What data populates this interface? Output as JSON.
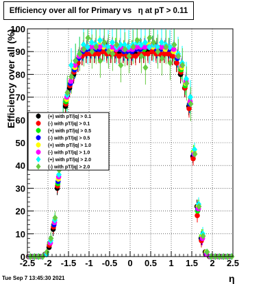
{
  "title": "Efficiency over all for Primary vs   η at pT > 0.11",
  "footer": "Tue Sep  7 13:45:30 2021",
  "chart_data": {
    "type": "scatter",
    "title": "Efficiency over all for Primary vs   η at pT > 0.11",
    "xlabel": "η",
    "ylabel": "Efficiency over all (%)",
    "xlim": [
      -2.5,
      2.5
    ],
    "ylim": [
      0,
      100
    ],
    "x_ticks": [
      "-2.5",
      "-2",
      "-1.5",
      "-1",
      "-0.5",
      "0",
      "0.5",
      "1",
      "1.5",
      "2",
      "2.5"
    ],
    "y_ticks": [
      "0",
      "10",
      "20",
      "30",
      "40",
      "50",
      "60",
      "70",
      "80",
      "90",
      "100"
    ],
    "grid": true,
    "legend_position": "left",
    "series": [
      {
        "name": "(+) with pT/|q| > 0.1",
        "color": "#000000",
        "marker": "circle",
        "x": [
          -2.45,
          -2.35,
          -2.25,
          -2.15,
          -2.05,
          -1.95,
          -1.85,
          -1.75,
          -1.65,
          -1.55,
          -1.45,
          -1.35,
          -1.25,
          -1.15,
          -1.05,
          -0.95,
          -0.85,
          -0.75,
          -0.65,
          -0.55,
          -0.45,
          -0.35,
          -0.25,
          -0.15,
          -0.05,
          0.05,
          0.15,
          0.25,
          0.35,
          0.45,
          0.55,
          0.65,
          0.75,
          0.85,
          0.95,
          1.05,
          1.15,
          1.25,
          1.35,
          1.45,
          1.55,
          1.65,
          1.75,
          1.85,
          1.95,
          2.05,
          2.15,
          2.25,
          2.35,
          2.45
        ],
        "y": [
          0,
          0,
          0,
          0,
          1,
          4,
          12,
          30,
          55,
          66,
          74,
          80,
          85,
          88,
          89,
          89,
          89,
          90,
          90,
          90,
          89,
          89,
          89,
          89,
          88,
          88,
          89,
          89,
          89,
          90,
          90,
          90,
          89,
          89,
          89,
          88,
          85,
          80,
          74,
          66,
          44,
          22,
          8,
          2,
          0,
          0,
          0,
          0,
          0,
          0
        ]
      },
      {
        "name": "(-) with pT/|q| > 0.1",
        "color": "#ff0000",
        "marker": "circle",
        "x": [
          -2.45,
          -2.35,
          -2.25,
          -2.15,
          -2.05,
          -1.95,
          -1.85,
          -1.75,
          -1.65,
          -1.55,
          -1.45,
          -1.35,
          -1.25,
          -1.15,
          -1.05,
          -0.95,
          -0.85,
          -0.75,
          -0.65,
          -0.55,
          -0.45,
          -0.35,
          -0.25,
          -0.15,
          -0.05,
          0.05,
          0.15,
          0.25,
          0.35,
          0.45,
          0.55,
          0.65,
          0.75,
          0.85,
          0.95,
          1.05,
          1.15,
          1.25,
          1.35,
          1.45,
          1.55,
          1.65,
          1.75,
          1.85,
          1.95,
          2.05,
          2.15,
          2.25,
          2.35,
          2.45
        ],
        "y": [
          0,
          0,
          0,
          0,
          1,
          5,
          13,
          31,
          56,
          67,
          75,
          81,
          85,
          88,
          89,
          89,
          89,
          89,
          90,
          89,
          89,
          89,
          88,
          89,
          88,
          88,
          88,
          89,
          89,
          89,
          90,
          89,
          89,
          89,
          89,
          88,
          85,
          81,
          74,
          65,
          43,
          18,
          7,
          1,
          0,
          0,
          0,
          0,
          0,
          0
        ]
      },
      {
        "name": "(+) with pT/|q| > 0.5",
        "color": "#00ee00",
        "marker": "circle",
        "x": [
          -2.45,
          -2.35,
          -2.25,
          -2.15,
          -2.05,
          -1.95,
          -1.85,
          -1.75,
          -1.65,
          -1.55,
          -1.45,
          -1.35,
          -1.25,
          -1.15,
          -1.05,
          -0.95,
          -0.85,
          -0.75,
          -0.65,
          -0.55,
          -0.45,
          -0.35,
          -0.25,
          -0.15,
          -0.05,
          0.05,
          0.15,
          0.25,
          0.35,
          0.45,
          0.55,
          0.65,
          0.75,
          0.85,
          0.95,
          1.05,
          1.15,
          1.25,
          1.35,
          1.45,
          1.55,
          1.65,
          1.75,
          1.85,
          1.95,
          2.05,
          2.15,
          2.25,
          2.35,
          2.45
        ],
        "y": [
          0,
          0,
          0,
          0,
          1,
          6,
          14,
          32,
          58,
          68,
          76,
          82,
          87,
          90,
          91,
          92,
          91,
          92,
          92,
          91,
          91,
          92,
          91,
          91,
          90,
          91,
          92,
          92,
          91,
          92,
          93,
          92,
          91,
          91,
          92,
          90,
          87,
          82,
          75,
          67,
          46,
          20,
          9,
          1,
          0,
          0,
          0,
          0,
          0,
          0
        ]
      },
      {
        "name": "(-) with pT/|q| > 0.5",
        "color": "#0000ff",
        "marker": "circle",
        "x": [
          -2.45,
          -2.35,
          -2.25,
          -2.15,
          -2.05,
          -1.95,
          -1.85,
          -1.75,
          -1.65,
          -1.55,
          -1.45,
          -1.35,
          -1.25,
          -1.15,
          -1.05,
          -0.95,
          -0.85,
          -0.75,
          -0.65,
          -0.55,
          -0.45,
          -0.35,
          -0.25,
          -0.15,
          -0.05,
          0.05,
          0.15,
          0.25,
          0.35,
          0.45,
          0.55,
          0.65,
          0.75,
          0.85,
          0.95,
          1.05,
          1.15,
          1.25,
          1.35,
          1.45,
          1.55,
          1.65,
          1.75,
          1.85,
          1.95,
          2.05,
          2.15,
          2.25,
          2.35,
          2.45
        ],
        "y": [
          0,
          0,
          0,
          0,
          1,
          6,
          14,
          33,
          58,
          69,
          76,
          82,
          87,
          90,
          91,
          91,
          91,
          91,
          92,
          91,
          91,
          91,
          91,
          90,
          90,
          90,
          91,
          91,
          92,
          92,
          92,
          91,
          91,
          91,
          91,
          90,
          87,
          83,
          76,
          67,
          45,
          21,
          8,
          1,
          0,
          0,
          0,
          0,
          0,
          0
        ]
      },
      {
        "name": "(+) with pT/|q| > 1.0",
        "color": "#ffff00",
        "marker": "circle",
        "x": [
          -2.45,
          -2.35,
          -2.25,
          -2.15,
          -2.05,
          -1.95,
          -1.85,
          -1.75,
          -1.65,
          -1.55,
          -1.45,
          -1.35,
          -1.25,
          -1.15,
          -1.05,
          -0.95,
          -0.85,
          -0.75,
          -0.65,
          -0.55,
          -0.45,
          -0.35,
          -0.25,
          -0.15,
          -0.05,
          0.05,
          0.15,
          0.25,
          0.35,
          0.45,
          0.55,
          0.65,
          0.75,
          0.85,
          0.95,
          1.05,
          1.15,
          1.25,
          1.35,
          1.45,
          1.55,
          1.65,
          1.75,
          1.85,
          1.95,
          2.05,
          2.15,
          2.25,
          2.35,
          2.45
        ],
        "y": [
          0,
          0,
          0,
          0,
          1,
          6,
          15,
          34,
          59,
          69,
          77,
          83,
          88,
          91,
          92,
          92,
          92,
          93,
          92,
          92,
          91,
          92,
          92,
          91,
          91,
          91,
          92,
          92,
          93,
          93,
          92,
          92,
          92,
          91,
          92,
          90,
          88,
          83,
          76,
          68,
          46,
          22,
          9,
          2,
          0,
          0,
          0,
          0,
          0,
          0
        ]
      },
      {
        "name": "(-) with pT/|q| > 1.0",
        "color": "#ff00ff",
        "marker": "circle",
        "x": [
          -2.45,
          -2.35,
          -2.25,
          -2.15,
          -2.05,
          -1.95,
          -1.85,
          -1.75,
          -1.65,
          -1.55,
          -1.45,
          -1.35,
          -1.25,
          -1.15,
          -1.05,
          -0.95,
          -0.85,
          -0.75,
          -0.65,
          -0.55,
          -0.45,
          -0.35,
          -0.25,
          -0.15,
          -0.05,
          0.05,
          0.15,
          0.25,
          0.35,
          0.45,
          0.55,
          0.65,
          0.75,
          0.85,
          0.95,
          1.05,
          1.15,
          1.25,
          1.35,
          1.45,
          1.55,
          1.65,
          1.75,
          1.85,
          1.95,
          2.05,
          2.15,
          2.25,
          2.35,
          2.45
        ],
        "y": [
          0,
          0,
          0,
          0,
          1,
          6,
          15,
          35,
          60,
          70,
          77,
          84,
          88,
          91,
          92,
          92,
          92,
          92,
          93,
          92,
          92,
          91,
          92,
          91,
          91,
          91,
          92,
          92,
          92,
          92,
          93,
          92,
          92,
          92,
          92,
          91,
          88,
          84,
          77,
          68,
          45,
          21,
          8,
          1,
          0,
          0,
          0,
          0,
          0,
          0
        ]
      },
      {
        "name": "(+) with pT/|q| > 2.0",
        "color": "#00ffff",
        "marker": "diamond",
        "x": [
          -2.45,
          -2.35,
          -2.25,
          -2.15,
          -2.05,
          -1.95,
          -1.85,
          -1.75,
          -1.65,
          -1.55,
          -1.45,
          -1.35,
          -1.25,
          -1.15,
          -1.05,
          -0.95,
          -0.85,
          -0.75,
          -0.65,
          -0.55,
          -0.45,
          -0.35,
          -0.25,
          -0.15,
          -0.05,
          0.05,
          0.15,
          0.25,
          0.35,
          0.45,
          0.55,
          0.65,
          0.75,
          0.85,
          0.95,
          1.05,
          1.15,
          1.25,
          1.35,
          1.45,
          1.55,
          1.65,
          1.75,
          1.85,
          1.95,
          2.05,
          2.15,
          2.25,
          2.35,
          2.45
        ],
        "y": [
          0,
          0,
          0,
          0,
          1,
          7,
          16,
          36,
          61,
          71,
          84,
          86,
          89,
          93,
          92,
          94,
          93,
          95,
          93,
          92,
          94,
          92,
          93,
          93,
          92,
          93,
          94,
          93,
          94,
          92,
          93,
          92,
          94,
          93,
          92,
          93,
          89,
          85,
          78,
          70,
          47,
          23,
          10,
          2,
          0,
          0,
          0,
          0,
          0,
          0
        ]
      },
      {
        "name": "(-) with pT/|q| > 2.0",
        "color": "#66cc44",
        "marker": "diamond",
        "x": [
          -2.45,
          -2.35,
          -2.25,
          -2.15,
          -2.05,
          -1.95,
          -1.85,
          -1.75,
          -1.65,
          -1.55,
          -1.45,
          -1.35,
          -1.25,
          -1.15,
          -1.05,
          -0.95,
          -0.85,
          -0.75,
          -0.65,
          -0.55,
          -0.45,
          -0.35,
          -0.25,
          -0.15,
          -0.05,
          0.05,
          0.15,
          0.25,
          0.35,
          0.45,
          0.55,
          0.65,
          0.75,
          0.85,
          0.95,
          1.05,
          1.15,
          1.25,
          1.35,
          1.45,
          1.55,
          1.65,
          1.75,
          1.85,
          1.95,
          2.05,
          2.15,
          2.25,
          2.35,
          2.45
        ],
        "y": [
          0,
          0,
          0,
          0,
          2,
          8,
          17,
          38,
          62,
          72,
          79,
          86,
          89,
          91,
          96,
          90,
          92,
          86,
          94,
          90,
          89,
          93,
          84,
          91,
          88,
          92,
          95,
          88,
          83,
          96,
          94,
          90,
          87,
          92,
          85,
          93,
          88,
          84,
          76,
          67,
          45,
          22,
          9,
          2,
          0,
          0,
          0,
          0,
          0,
          0
        ]
      }
    ]
  }
}
